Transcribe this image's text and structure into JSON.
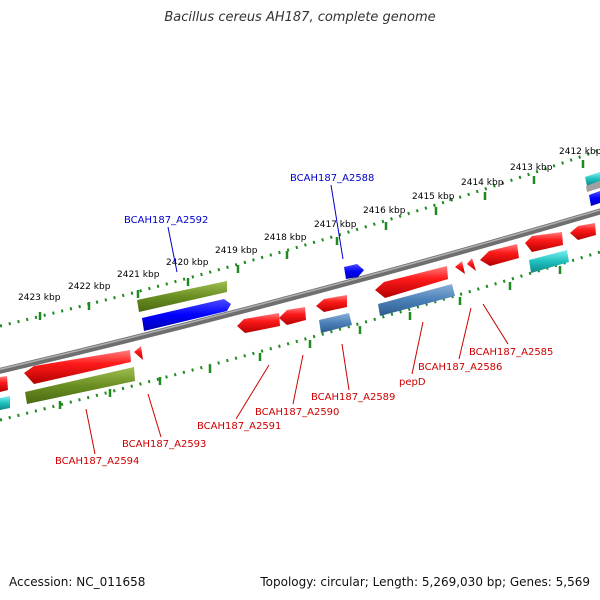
{
  "title": "Bacillus cereus AH187, complete genome",
  "footer": {
    "accession": "Accession: NC_011658",
    "stats": "Topology: circular; Length: 5,269,030 bp; Genes: 5,569"
  },
  "ruler_labels": [
    "2423 kbp",
    "2422 kbp",
    "2421 kbp",
    "2420 kbp",
    "2419 kbp",
    "2418 kbp",
    "2417 kbp",
    "2416 kbp",
    "2415 kbp",
    "2414 kbp",
    "2413 kbp",
    "2412 kbp"
  ],
  "top_gene_labels": [
    "BCAH187_A2592",
    "BCAH187_A2588"
  ],
  "bottom_gene_labels": [
    "BCAH187_A2594",
    "BCAH187_A2593",
    "BCAH187_A2591",
    "BCAH187_A2590",
    "BCAH187_A2589",
    "pepD",
    "BCAH187_A2586",
    "BCAH187_A2585"
  ],
  "colors": {
    "backbone": "#808080",
    "ruler": "#1f8a1f",
    "cds_red": "#ff1a1a",
    "gene_olive": "#6b8e23",
    "gene_blue": "#0000ff",
    "gene_steel": "#4a80b8",
    "gene_cyan": "#20c0c0",
    "label_blue": "#0000cc",
    "label_red": "#cc0000"
  }
}
